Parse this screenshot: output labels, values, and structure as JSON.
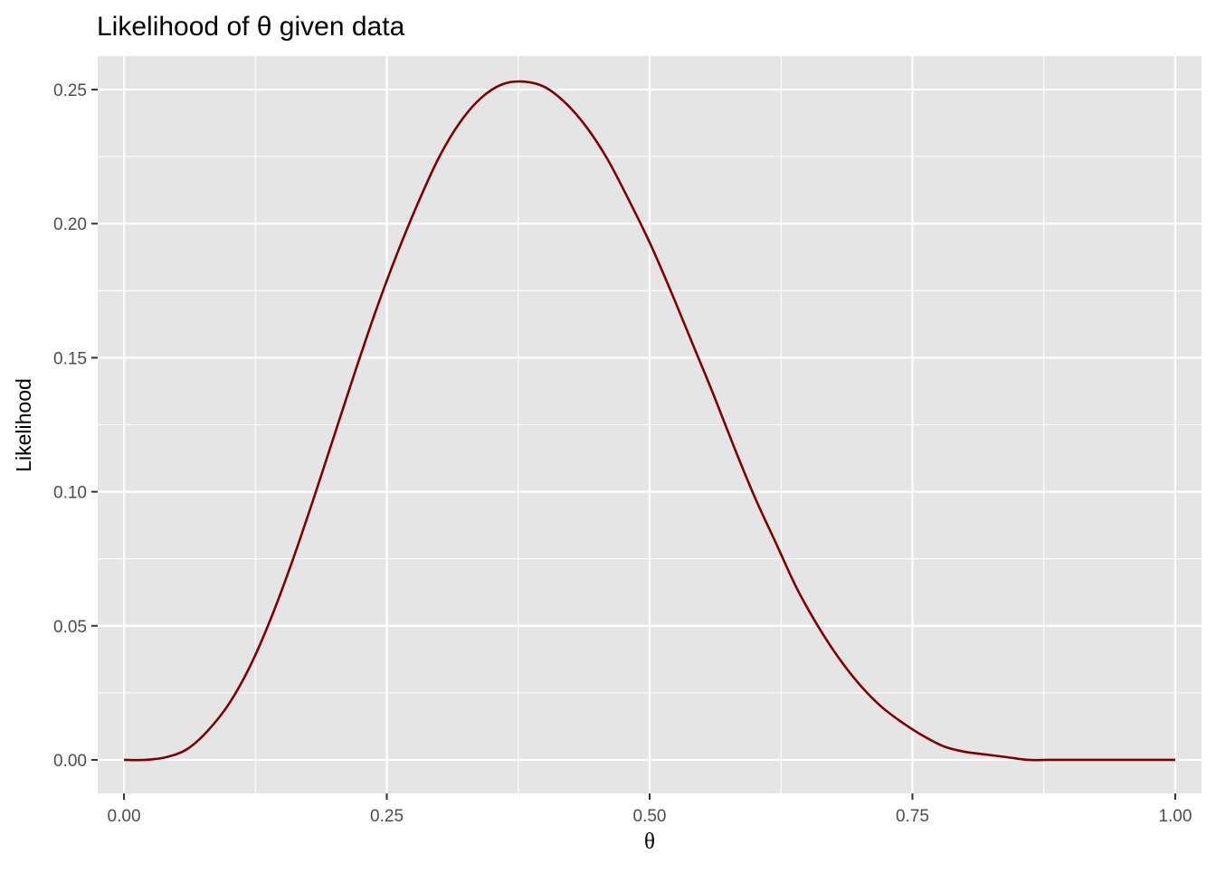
{
  "chart_data": {
    "type": "line",
    "title": "Likelihood of θ given data",
    "xlabel": "θ",
    "ylabel": "Likelihood",
    "xlim": [
      -0.025,
      1.025
    ],
    "ylim": [
      -0.0125,
      0.2625
    ],
    "x_ticks": [
      0.0,
      0.25,
      0.5,
      0.75,
      1.0
    ],
    "x_tick_labels": [
      "0.00",
      "0.25",
      "0.50",
      "0.75",
      "1.00"
    ],
    "y_ticks": [
      0.0,
      0.05,
      0.1,
      0.15,
      0.2,
      0.25
    ],
    "y_tick_labels": [
      "0.00",
      "0.05",
      "0.10",
      "0.15",
      "0.20",
      "0.25"
    ],
    "grid": true,
    "background": "#e5e5e5",
    "line_color": "#7f0000",
    "series": [
      {
        "x": [
          0.0,
          0.02,
          0.04,
          0.06,
          0.08,
          0.1,
          0.12,
          0.14,
          0.16,
          0.18,
          0.2,
          0.22,
          0.24,
          0.26,
          0.28,
          0.3,
          0.32,
          0.34,
          0.36,
          0.38,
          0.4,
          0.42,
          0.44,
          0.46,
          0.48,
          0.5,
          0.52,
          0.54,
          0.56,
          0.58,
          0.6,
          0.62,
          0.64,
          0.66,
          0.68,
          0.7,
          0.72,
          0.74,
          0.76,
          0.78,
          0.8,
          0.82,
          0.84,
          0.86,
          0.88,
          0.9,
          0.92,
          0.94,
          0.96,
          0.98,
          1.0
        ],
        "values": [
          0.0,
          0.0,
          0.001,
          0.004,
          0.011,
          0.021,
          0.035,
          0.053,
          0.074,
          0.097,
          0.121,
          0.145,
          0.168,
          0.189,
          0.208,
          0.225,
          0.238,
          0.247,
          0.252,
          0.253,
          0.251,
          0.245,
          0.236,
          0.224,
          0.209,
          0.193,
          0.175,
          0.156,
          0.137,
          0.117,
          0.098,
          0.081,
          0.064,
          0.05,
          0.038,
          0.028,
          0.02,
          0.014,
          0.009,
          0.005,
          0.003,
          0.002,
          0.001,
          0.0,
          0.0,
          0.0,
          0.0,
          0.0,
          0.0,
          0.0,
          0.0
        ]
      }
    ]
  }
}
